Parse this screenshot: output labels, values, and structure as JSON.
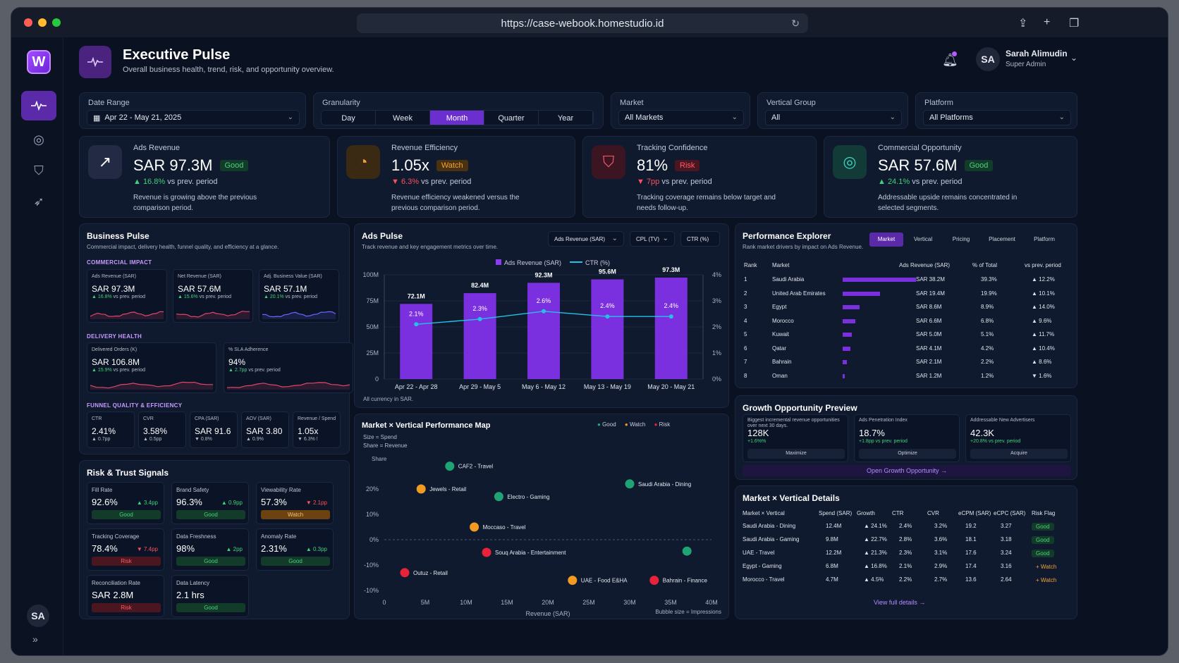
{
  "browser": {
    "url": "https://case-webook.homestudio.id"
  },
  "sidebar": {
    "logo": "W",
    "avatar": "SA",
    "collapse": "»"
  },
  "header": {
    "title": "Executive Pulse",
    "subtitle": "Overall business health, trend, risk, and opportunity overview.",
    "user_initials": "SA",
    "user_name": "Sarah Alimudin",
    "user_role": "Super Admin"
  },
  "filters": {
    "date_label": "Date Range",
    "date_value": "Apr 22 - May 21, 2025",
    "gran_label": "Granularity",
    "granularity": [
      "Day",
      "Week",
      "Month",
      "Quarter",
      "Year"
    ],
    "market_label": "Market",
    "market_value": "All Markets",
    "vertical_label": "Vertical Group",
    "vertical_value": "All",
    "platform_label": "Platform",
    "platform_value": "All Platforms"
  },
  "kpis": [
    {
      "label": "Ads Revenue",
      "value": "SAR 97.3M",
      "badge": "Good",
      "delta": "▲ 16.8%",
      "delta_text": " vs prev. period",
      "desc": "Revenue is growing above the previous comparison period."
    },
    {
      "label": "Revenue Efficiency",
      "value": "1.05x",
      "badge": "Watch",
      "delta": "▼ 6.3%",
      "delta_text": " vs prev. period",
      "desc": "Revenue efficiency weakened versus the previous comparison period."
    },
    {
      "label": "Tracking Confidence",
      "value": "81%",
      "badge": "Risk",
      "delta": "▼ 7pp",
      "delta_text": " vs prev. period",
      "desc": "Tracking coverage remains below target and needs follow-up."
    },
    {
      "label": "Commercial Opportunity",
      "value": "SAR 57.6M",
      "badge": "Good",
      "delta": "▲ 24.1%",
      "delta_text": " vs prev. period",
      "desc": "Addressable upside remains concentrated in selected segments."
    }
  ],
  "business_pulse": {
    "title": "Business Pulse",
    "subtitle": "Commercial impact, delivery health, funnel quality, and efficiency at a glance.",
    "sec1": "COMMERCIAL IMPACT",
    "sec2": "DELIVERY HEALTH",
    "sec3": "FUNNEL QUALITY & EFFICIENCY",
    "commercial": [
      {
        "label": "Ads Revenue (SAR)",
        "value": "SAR 97.3M",
        "delta": "▲ 16.8%",
        "dt": " vs prev. period"
      },
      {
        "label": "Net Revenue (SAR)",
        "value": "SAR 57.6M",
        "delta": "▲ 15.6%",
        "dt": " vs prev. period"
      },
      {
        "label": "Adj. Business Value (SAR)",
        "value": "SAR 57.1M",
        "delta": "▲ 20.1%",
        "dt": " vs prev. period"
      }
    ],
    "delivery": [
      {
        "label": "Delivered Orders (K)",
        "value": "SAR 106.8M",
        "delta": "▲ 15.9%",
        "dt": " vs prev. period"
      },
      {
        "label": "% SLA Adherence",
        "value": "94%",
        "delta": "▲ 2.7pp",
        "dt": " vs prev. period"
      }
    ],
    "funnel": [
      {
        "label": "CTR",
        "value": "2.41%",
        "delta": "▲ 0.7pp"
      },
      {
        "label": "CVR",
        "value": "3.58%",
        "delta": "▲ 0.5pp"
      },
      {
        "label": "CPA (SAR)",
        "value": "SAR 91.6",
        "delta": "▼ 0.8%"
      },
      {
        "label": "AOV (SAR)",
        "value": "SAR 3.80",
        "delta": "▲ 0.9%"
      },
      {
        "label": "Revenue / Spend",
        "value": "1.05x",
        "delta": "▼ 6.3% !"
      }
    ]
  },
  "ads_pulse": {
    "title": "Ads Pulse",
    "subtitle": "Track revenue and key engagement metrics over time.",
    "sel1": "Ads Revenue (SAR)",
    "sel2": "CPL (TV)",
    "sel3": "CTR (%)",
    "legend1": "Ads Revenue (SAR)",
    "legend2": "CTR (%)",
    "footnote": "All currency in SAR."
  },
  "chart_data": {
    "type": "bar",
    "categories": [
      "Apr 22 - Apr 28",
      "Apr 29 - May 5",
      "May 6 - May 12",
      "May 13 - May 19",
      "May 20 - May 21"
    ],
    "series": [
      {
        "name": "Ads Revenue (SAR)",
        "values": [
          72.1,
          82.4,
          92.3,
          95.6,
          97.3
        ],
        "labels": [
          "72.1M",
          "82.4M",
          "92.3M",
          "95.6M",
          "97.3M"
        ]
      },
      {
        "name": "CTR (%)",
        "type": "line",
        "values": [
          2.1,
          2.3,
          2.6,
          2.4,
          2.4
        ],
        "labels": [
          "2.1%",
          "2.3%",
          "2.6%",
          "2.4%",
          "2.4%"
        ]
      }
    ],
    "ylim": [
      0,
      100
    ],
    "y_ticks": [
      "0",
      "25M",
      "50M",
      "75M",
      "100M"
    ],
    "y2lim": [
      0,
      4
    ],
    "y2_ticks": [
      "0%",
      "1%",
      "2%",
      "3%",
      "4%"
    ]
  },
  "perf": {
    "title": "Performance Explorer",
    "subtitle": "Rank market drivers by impact on Ads Revenue.",
    "tabs": [
      "Market",
      "Vertical",
      "Pricing",
      "Placement",
      "Platform"
    ],
    "cols": [
      "Rank",
      "Market",
      "Ads Revenue (SAR)",
      "% of Total",
      "vs prev. period"
    ],
    "rows": [
      {
        "rank": "1",
        "market": "Saudi Arabia",
        "rev": "SAR 38.2M",
        "pct": "39.3%",
        "d": "▲ 12.2%",
        "share": 39.3
      },
      {
        "rank": "2",
        "market": "United Arab Emirates",
        "rev": "SAR 19.4M",
        "pct": "19.9%",
        "d": "▲ 10.1%",
        "share": 19.9
      },
      {
        "rank": "3",
        "market": "Egypt",
        "rev": "SAR 8.6M",
        "pct": "8.9%",
        "d": "▲ 14.0%",
        "share": 8.9
      },
      {
        "rank": "4",
        "market": "Morocco",
        "rev": "SAR 6.6M",
        "pct": "6.8%",
        "d": "▲ 9.6%",
        "share": 6.8
      },
      {
        "rank": "5",
        "market": "Kuwait",
        "rev": "SAR 5.0M",
        "pct": "5.1%",
        "d": "▲ 11.7%",
        "share": 5.1
      },
      {
        "rank": "6",
        "market": "Qatar",
        "rev": "SAR 4.1M",
        "pct": "4.2%",
        "d": "▲ 10.4%",
        "share": 4.2
      },
      {
        "rank": "7",
        "market": "Bahrain",
        "rev": "SAR 2.1M",
        "pct": "2.2%",
        "d": "▲ 8.6%",
        "share": 2.2
      },
      {
        "rank": "8",
        "market": "Oman",
        "rev": "SAR 1.2M",
        "pct": "1.2%",
        "d": "▼ 1.6%",
        "share": 1.2
      }
    ]
  },
  "risk": {
    "title": "Risk & Trust Signals",
    "cards": [
      {
        "label": "Fill Rate",
        "value": "92.6%",
        "delta": "▲ 3.4pp",
        "badge": "Good"
      },
      {
        "label": "Brand Safety",
        "value": "96.3%",
        "delta": "▲ 0.9pp",
        "badge": "Good"
      },
      {
        "label": "Viewability Rate",
        "value": "57.3%",
        "delta": "▼ 2.1pp",
        "badge": "Watch"
      },
      {
        "label": "Tracking Coverage",
        "value": "78.4%",
        "delta": "▼ 7.4pp",
        "badge": "Risk"
      },
      {
        "label": "Data Freshness",
        "value": "98%",
        "delta": "▲ 2pp",
        "badge": "Good"
      },
      {
        "label": "Anomaly Rate",
        "value": "2.31%",
        "delta": "▲ 0.3pp",
        "badge": "Good"
      },
      {
        "label": "Reconciliation Rate",
        "value": "SAR 2.8M",
        "delta": "",
        "badge": "Risk"
      },
      {
        "label": "Data Latency",
        "value": "2.1 hrs",
        "delta": "",
        "badge": "Good"
      }
    ]
  },
  "map": {
    "title": "Market × Vertical Performance Map",
    "legend": [
      "Good",
      "Watch",
      "Risk"
    ],
    "size_note": "Size = Spend",
    "share_note": "Share = Revenue",
    "y_axis": "Share",
    "x_axis": "Revenue (SAR)",
    "bubble_note": "Bubble size = Impressions",
    "x_ticks": [
      "0",
      "5M",
      "10M",
      "15M",
      "20M",
      "25M",
      "30M",
      "35M",
      "40M"
    ],
    "y_ticks": [
      "20%",
      "10%",
      "0%",
      "-10%",
      "-10%"
    ],
    "points": [
      {
        "label": "CAF2 - Travel",
        "x": 8,
        "y": 29,
        "s": "good"
      },
      {
        "label": "Jewels - Retail",
        "x": 4.5,
        "y": 20,
        "s": "watch"
      },
      {
        "label": "Electro - Gaming",
        "x": 14,
        "y": 17,
        "s": "good"
      },
      {
        "label": "Saudi Arabia - Dining",
        "x": 30,
        "y": 22,
        "s": "good"
      },
      {
        "label": "Moccaso - Travel",
        "x": 11,
        "y": 5,
        "s": "watch"
      },
      {
        "label": "Souq Arabia - Entertainment",
        "x": 12.5,
        "y": -5,
        "s": "risk"
      },
      {
        "label": "",
        "x": 37,
        "y": -4.5,
        "s": "good"
      },
      {
        "label": "Outuz - Retail",
        "x": 2.5,
        "y": -13,
        "s": "risk"
      },
      {
        "label": "UAE - Food E&HA",
        "x": 23,
        "y": -16,
        "s": "watch"
      },
      {
        "label": "Bahrain - Finance",
        "x": 33,
        "y": -16,
        "s": "risk"
      }
    ]
  },
  "growth": {
    "title": "Growth Opportunity Preview",
    "cards": [
      {
        "label": "Biggest incremental revenue opportunities over next 30 days.",
        "value": "128K",
        "delta": "+1.6%%",
        "btn": "Maximize"
      },
      {
        "label": "Ads Penetration Index",
        "value": "18.7%",
        "delta": "+1.8pp vs prev. period",
        "btn": "Optimize"
      },
      {
        "label": "Addressable New Advertisers",
        "value": "42.3K",
        "delta": "+20.8% vs prev. period",
        "btn": "Acquire"
      }
    ],
    "cta": "Open Growth Opportunity →"
  },
  "details": {
    "title": "Market × Vertical Details",
    "cols": [
      "Market × Vertical",
      "Spend (SAR)",
      "Growth",
      "CTR",
      "CVR",
      "eCPM (SAR)",
      "eCPC (SAR)",
      "Risk Flag"
    ],
    "rows": [
      {
        "mv": "Saudi Arabia - Dining",
        "spend": "12.4M",
        "growth": "▲ 24.1%",
        "ctr": "2.4%",
        "cvr": "3.2%",
        "ecpm": "19.2",
        "ecpc": "3.27",
        "flag": "Good"
      },
      {
        "mv": "Saudi Arabia - Gaming",
        "spend": "9.8M",
        "growth": "▲ 22.7%",
        "ctr": "2.8%",
        "cvr": "3.6%",
        "ecpm": "18.1",
        "ecpc": "3.18",
        "flag": "Good"
      },
      {
        "mv": "UAE - Travel",
        "spend": "12.2M",
        "growth": "▲ 21.3%",
        "ctr": "2.3%",
        "cvr": "3.1%",
        "ecpm": "17.6",
        "ecpc": "3.24",
        "flag": "Good"
      },
      {
        "mv": "Egypt - Gaming",
        "spend": "6.8M",
        "growth": "▲ 16.8%",
        "ctr": "2.1%",
        "cvr": "2.9%",
        "ecpm": "17.4",
        "ecpc": "3.16",
        "flag": "+ Watch"
      },
      {
        "mv": "Morocco - Travel",
        "spend": "4.7M",
        "growth": "▲ 4.5%",
        "ctr": "2.2%",
        "cvr": "2.7%",
        "ecpm": "13.6",
        "ecpc": "2.64",
        "flag": "+ Watch"
      }
    ],
    "link": "View full details →"
  }
}
